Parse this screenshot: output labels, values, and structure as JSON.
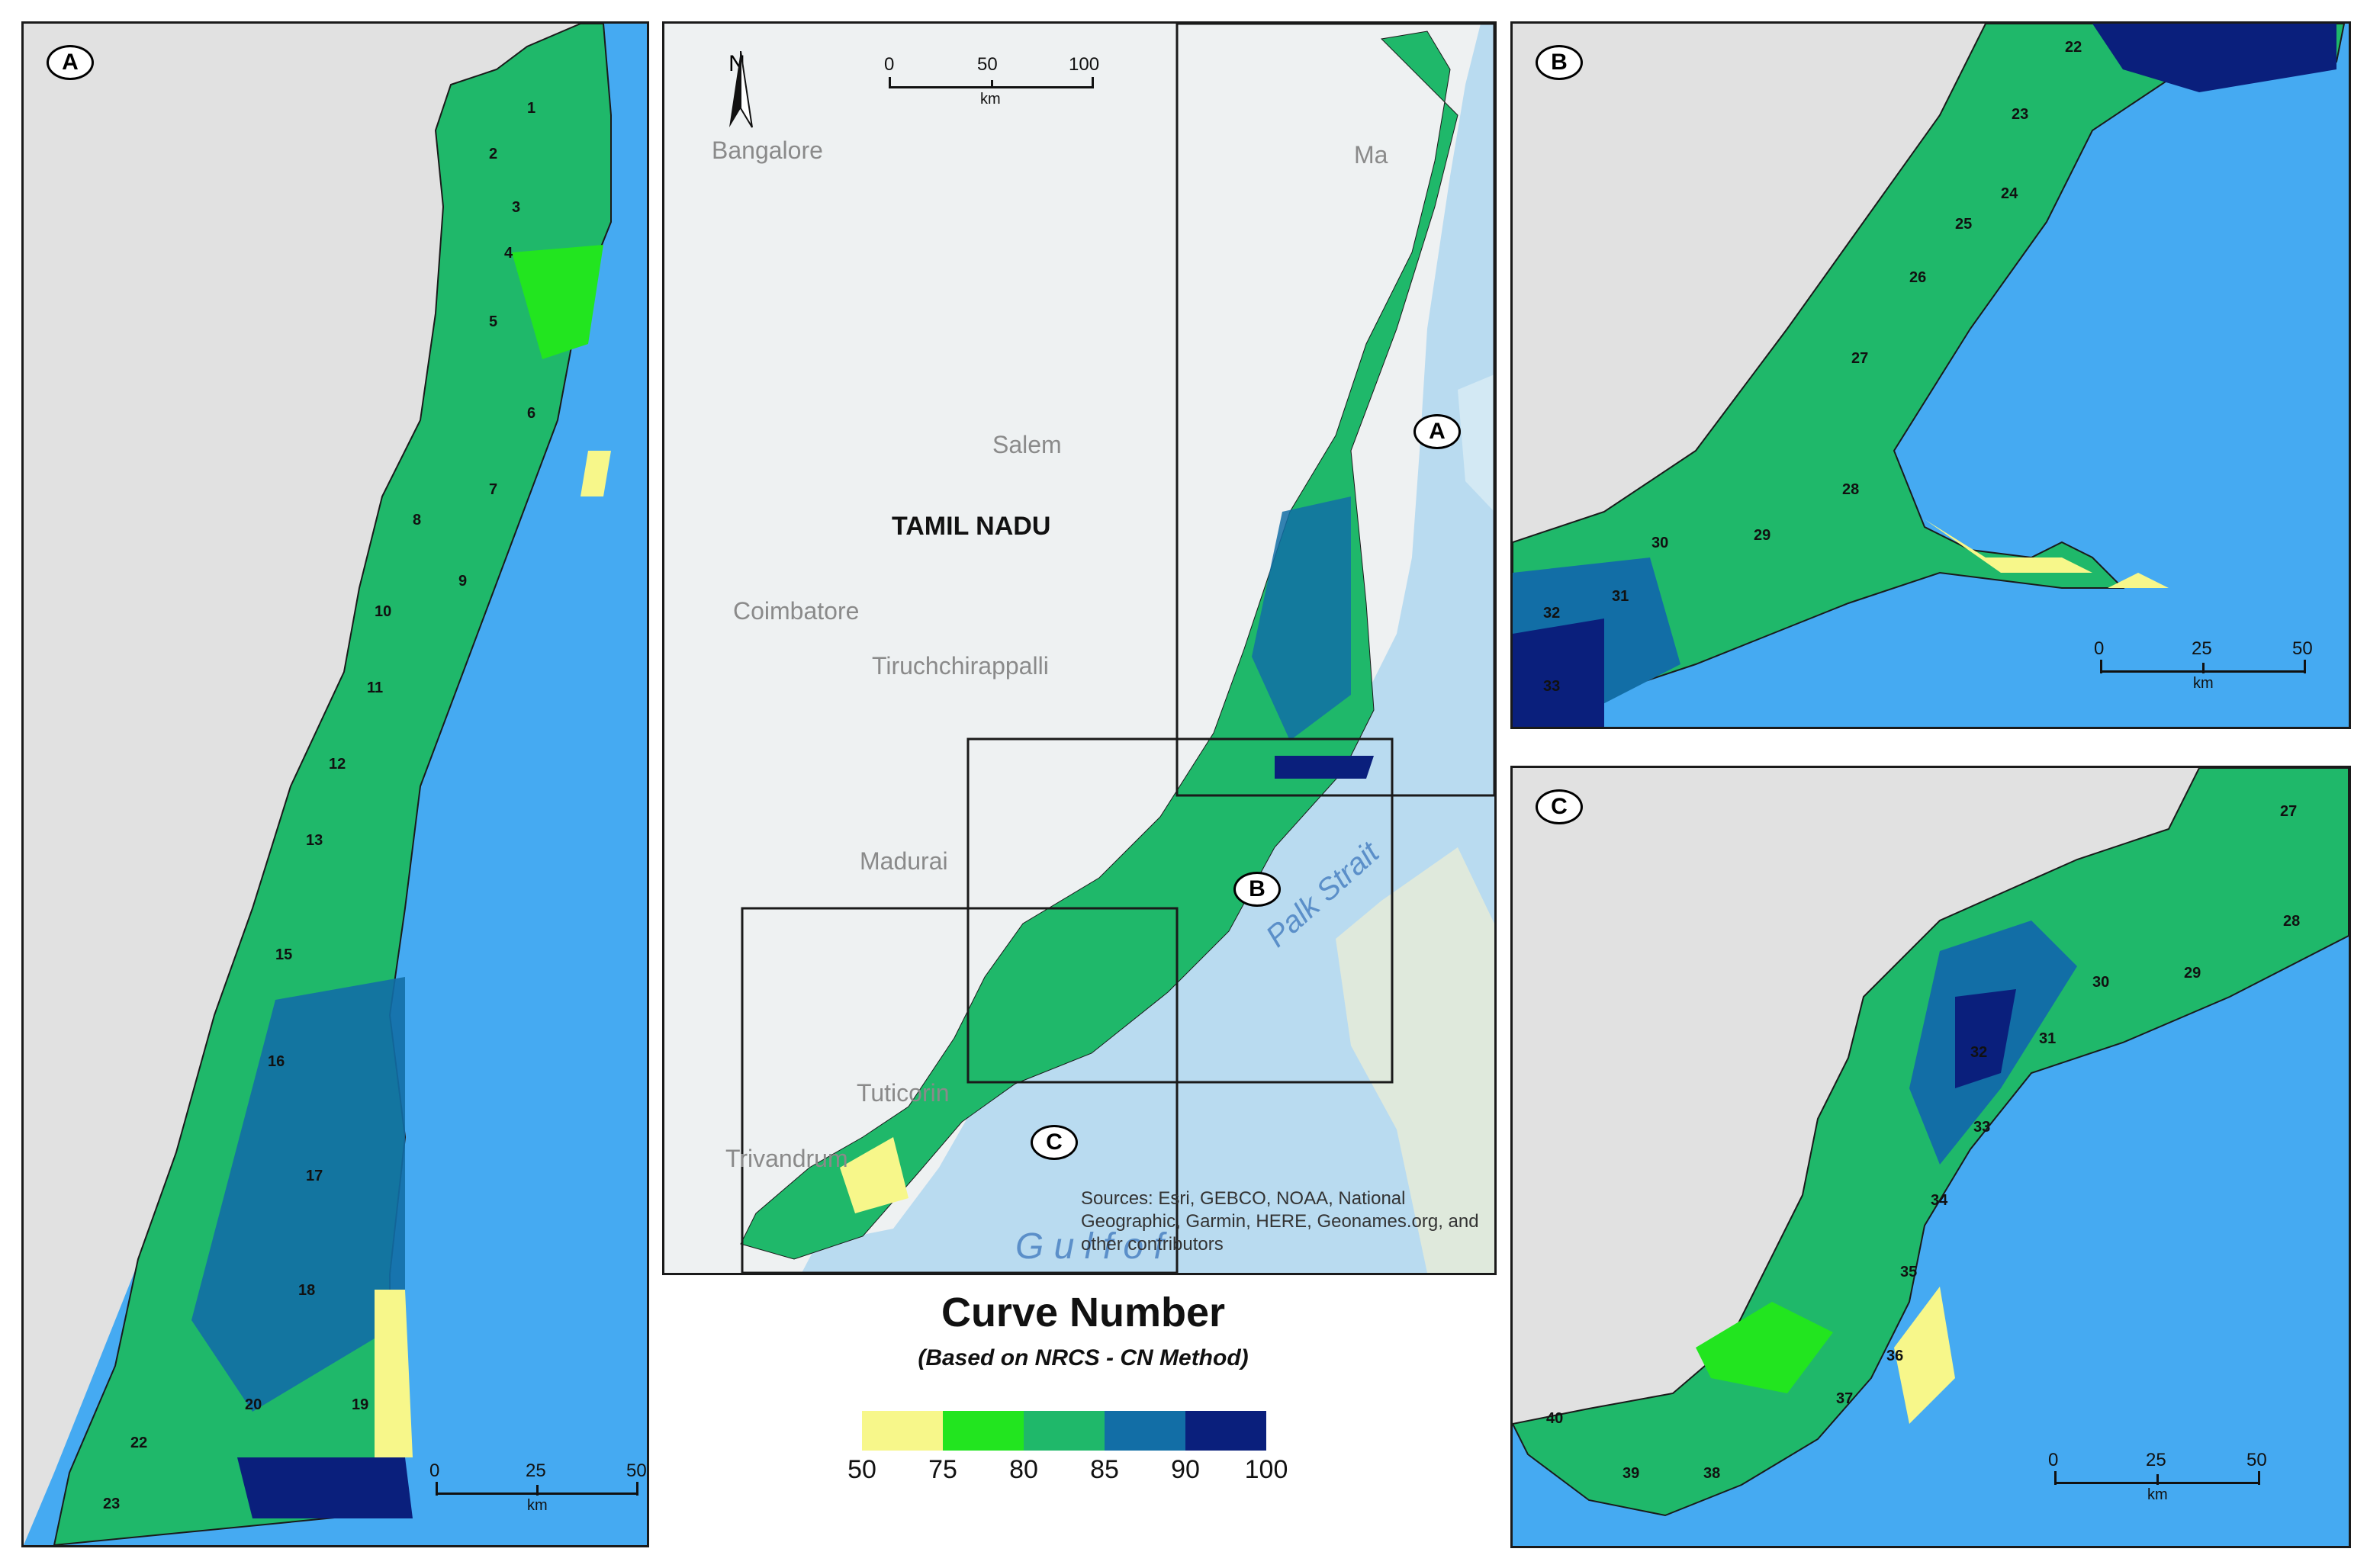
{
  "panels": {
    "A": {
      "badge": "A",
      "units": [
        "1",
        "2",
        "3",
        "4",
        "5",
        "6",
        "7",
        "8",
        "9",
        "10",
        "11",
        "12",
        "13",
        "15",
        "16",
        "17",
        "18",
        "20",
        "19",
        "22",
        "23"
      ]
    },
    "B": {
      "badge": "B",
      "units": [
        "22",
        "23",
        "24",
        "25",
        "26",
        "27",
        "28",
        "29",
        "30",
        "31",
        "32",
        "33"
      ]
    },
    "C": {
      "badge": "C",
      "units": [
        "27",
        "28",
        "29",
        "30",
        "31",
        "32",
        "33",
        "34",
        "35",
        "36",
        "37",
        "38",
        "39",
        "40"
      ]
    }
  },
  "scale": {
    "ticks": [
      "0",
      "25",
      "50"
    ],
    "unit": "km"
  },
  "overview": {
    "scale_ticks": [
      "0",
      "50",
      "100"
    ],
    "scale_unit": "km",
    "north_label": "N",
    "state": "TAMIL NADU",
    "cities": [
      "Bangalore",
      "Salem",
      "Coimbatore",
      "Tiruchchirappalli",
      "Madurai",
      "Tuticorin",
      "Trivandrum",
      "Ma"
    ],
    "strait": "Palk Strait",
    "gulf": "G u l f  o f",
    "inset_badges": [
      "A",
      "B",
      "C"
    ],
    "attribution": "Sources: Esri, GEBCO, NOAA, National Geographic, Garmin, HERE, Geonames.org, and other contributors"
  },
  "legend": {
    "title": "Curve Number",
    "subtitle": "(Based on NRCS - CN Method)",
    "classes": [
      {
        "range": "50-75",
        "color": "#f7f78a"
      },
      {
        "range": "75-80",
        "color": "#22e51f"
      },
      {
        "range": "80-85",
        "color": "#1fb86a"
      },
      {
        "range": "85-90",
        "color": "#126ea6"
      },
      {
        "range": "90-100",
        "color": "#0a1f7c"
      }
    ],
    "ticks": [
      "50",
      "75",
      "80",
      "85",
      "90",
      "100"
    ]
  },
  "colors": {
    "sea": "#45aaf2",
    "land_outside": "#e1e1e1",
    "outline": "#1a1a1a"
  }
}
